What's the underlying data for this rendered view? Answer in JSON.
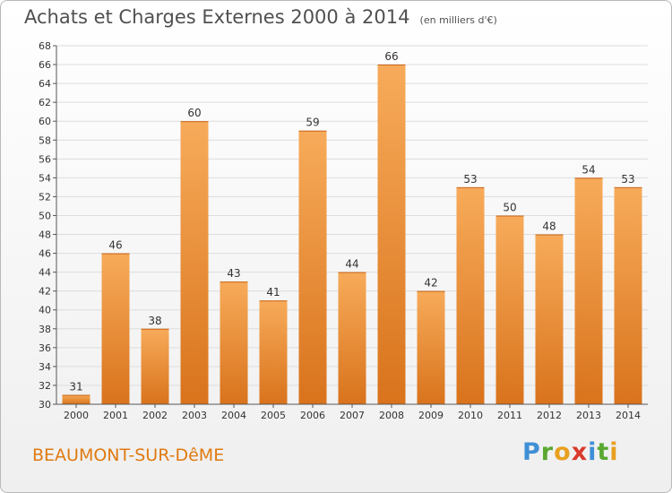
{
  "header": {
    "title": "Achats et Charges Externes 2000 à 2014",
    "unit": "(en milliers d'€)"
  },
  "footer": {
    "commune": "BEAUMONT-SUR-DêME",
    "logo": [
      "P",
      "r",
      "o",
      "x",
      "i",
      "t",
      "i"
    ],
    "logo_colors": [
      "#3f8fd6",
      "#5aa832",
      "#e8a020",
      "#d93a2b",
      "#3f8fd6",
      "#5aa832",
      "#e8a020"
    ]
  },
  "colors": {
    "bar_light": "#f7ab5a",
    "bar_dark": "#d9731c",
    "grid": "#dddddd",
    "axis": "#555555",
    "text": "#333333"
  },
  "chart_data": {
    "type": "bar",
    "title": "Achats et Charges Externes 2000 à 2014",
    "subtitle": "(en milliers d'€)",
    "xlabel": "",
    "ylabel": "",
    "categories": [
      "2000",
      "2001",
      "2002",
      "2003",
      "2004",
      "2005",
      "2006",
      "2007",
      "2008",
      "2009",
      "2010",
      "2011",
      "2012",
      "2013",
      "2014"
    ],
    "values": [
      31,
      46,
      38,
      60,
      43,
      41,
      59,
      44,
      66,
      42,
      53,
      50,
      48,
      54,
      53
    ],
    "ylim": [
      30,
      68
    ],
    "ytick_step": 2,
    "grid": true,
    "legend": "none"
  }
}
